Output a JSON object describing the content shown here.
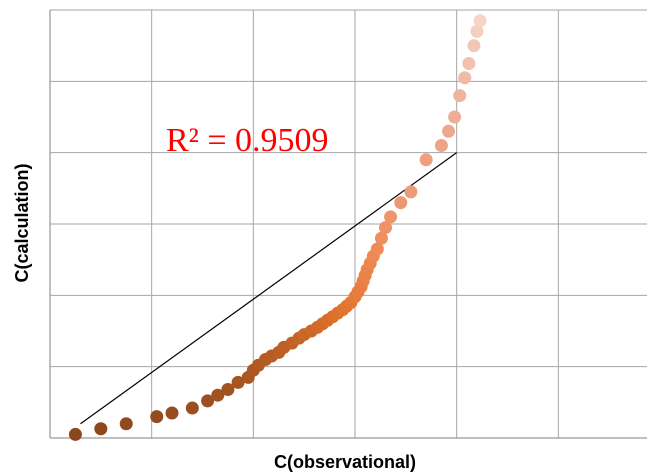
{
  "chart_data": {
    "type": "scatter",
    "title": "",
    "xlabel": "C(observational)",
    "ylabel": "C(calculation)",
    "xlim": [
      0,
      6
    ],
    "ylim": [
      0,
      6
    ],
    "grid": true,
    "annotation": {
      "text": "R² = 0.9509",
      "color": "#ff0000"
    },
    "trendline": {
      "x": [
        0.3,
        4.0
      ],
      "y": [
        0.2,
        4.0
      ]
    },
    "series": [
      {
        "x": [
          0.25,
          0.5,
          0.75,
          1.05,
          1.2,
          1.4,
          1.55,
          1.65,
          1.75,
          1.85,
          1.95,
          2.0,
          2.05,
          2.12,
          2.18,
          2.25,
          2.3,
          2.38,
          2.45,
          2.5,
          2.57,
          2.63,
          2.68,
          2.73,
          2.78,
          2.83,
          2.88,
          2.92,
          2.96,
          3.0,
          3.03,
          3.06,
          3.08,
          3.1,
          3.12,
          3.15,
          3.18,
          3.22,
          3.26,
          3.3,
          3.35,
          3.45,
          3.55,
          3.7,
          3.85,
          3.92,
          3.98,
          4.03,
          4.08,
          4.12,
          4.17,
          4.2,
          4.23
        ],
        "y": [
          0.05,
          0.13,
          0.2,
          0.3,
          0.35,
          0.42,
          0.52,
          0.6,
          0.68,
          0.78,
          0.85,
          0.95,
          1.02,
          1.1,
          1.15,
          1.2,
          1.27,
          1.33,
          1.4,
          1.45,
          1.5,
          1.55,
          1.6,
          1.65,
          1.7,
          1.75,
          1.8,
          1.85,
          1.9,
          1.98,
          2.05,
          2.12,
          2.2,
          2.28,
          2.36,
          2.45,
          2.55,
          2.65,
          2.8,
          2.95,
          3.1,
          3.3,
          3.45,
          3.9,
          4.1,
          4.3,
          4.5,
          4.8,
          5.05,
          5.25,
          5.5,
          5.7,
          5.85
        ]
      }
    ]
  }
}
